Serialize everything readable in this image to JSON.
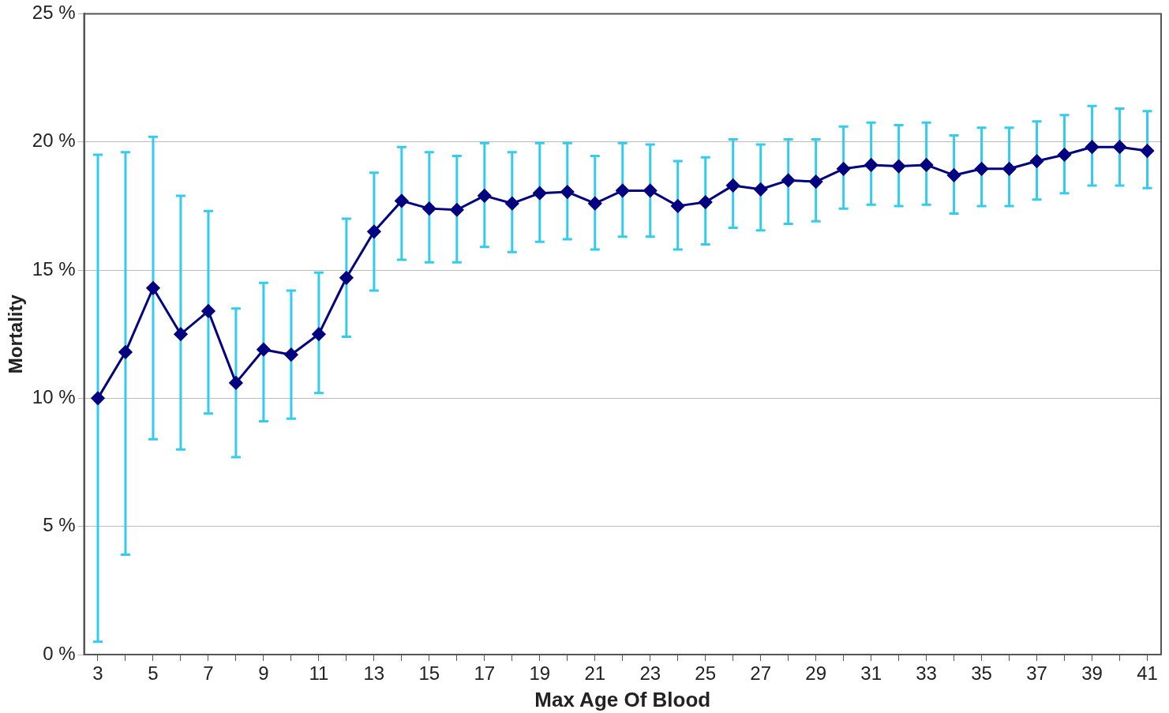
{
  "chart_data": {
    "type": "line",
    "xlabel": "Max Age Of Blood",
    "ylabel": "Mortality",
    "x": [
      3,
      4,
      5,
      6,
      7,
      8,
      9,
      10,
      11,
      12,
      13,
      14,
      15,
      16,
      17,
      18,
      19,
      20,
      21,
      22,
      23,
      24,
      25,
      26,
      27,
      28,
      29,
      30,
      31,
      32,
      33,
      34,
      35,
      36,
      37,
      38,
      39,
      40,
      41
    ],
    "xlim": [
      2.5,
      41.5
    ],
    "xticks": [
      3,
      {
        "value": 4,
        "label": null
      },
      5,
      {
        "value": 6,
        "label": null
      },
      7,
      {
        "value": 8,
        "label": null
      },
      9,
      {
        "value": 10,
        "label": null
      },
      11,
      {
        "value": 12,
        "label": null
      },
      13,
      {
        "value": 14,
        "label": null
      },
      15,
      {
        "value": 16,
        "label": null
      },
      17,
      {
        "value": 18,
        "label": null
      },
      19,
      {
        "value": 20,
        "label": null
      },
      21,
      {
        "value": 22,
        "label": null
      },
      23,
      {
        "value": 24,
        "label": null
      },
      25,
      {
        "value": 26,
        "label": null
      },
      27,
      {
        "value": 28,
        "label": null
      },
      29,
      {
        "value": 30,
        "label": null
      },
      31,
      {
        "value": 32,
        "label": null
      },
      33,
      {
        "value": 34,
        "label": null
      },
      35,
      {
        "value": 36,
        "label": null
      },
      37,
      {
        "value": 38,
        "label": null
      },
      39,
      {
        "value": 40,
        "label": null
      },
      41
    ],
    "series": [
      {
        "color": "#000080",
        "values": [
          10.0,
          11.8,
          14.3,
          12.5,
          13.4,
          10.6,
          11.9,
          11.7,
          12.5,
          14.7,
          16.5,
          17.7,
          17.4,
          17.35,
          17.9,
          17.6,
          18.0,
          18.05,
          17.6,
          18.1,
          18.1,
          17.5,
          17.65,
          18.3,
          18.15,
          18.5,
          18.45,
          18.95,
          19.1,
          19.05,
          19.1,
          18.7,
          18.95,
          18.95,
          19.25,
          19.5,
          19.8,
          19.8,
          19.65
        ],
        "errors": [
          [
            0.5,
            19.5
          ],
          [
            3.9,
            19.6
          ],
          [
            8.4,
            20.2
          ],
          [
            8.0,
            17.9
          ],
          [
            9.4,
            17.3
          ],
          [
            7.7,
            13.5
          ],
          [
            9.1,
            14.5
          ],
          [
            9.2,
            14.2
          ],
          [
            10.2,
            14.9
          ],
          [
            12.4,
            17.0
          ],
          [
            14.2,
            18.8
          ],
          [
            15.4,
            19.8
          ],
          [
            15.3,
            19.6
          ],
          [
            15.3,
            19.45
          ],
          [
            15.9,
            19.95
          ],
          [
            15.7,
            19.6
          ],
          [
            16.1,
            19.95
          ],
          [
            16.2,
            19.95
          ],
          [
            15.8,
            19.45
          ],
          [
            16.3,
            19.95
          ],
          [
            16.3,
            19.9
          ],
          [
            15.8,
            19.25
          ],
          [
            16.0,
            19.4
          ],
          [
            16.65,
            20.1
          ],
          [
            16.55,
            19.9
          ],
          [
            16.8,
            20.1
          ],
          [
            16.9,
            20.1
          ],
          [
            17.4,
            20.6
          ],
          [
            17.55,
            20.75
          ],
          [
            17.5,
            20.65
          ],
          [
            17.55,
            20.75
          ],
          [
            17.2,
            20.25
          ],
          [
            17.5,
            20.55
          ],
          [
            17.5,
            20.55
          ],
          [
            17.75,
            20.8
          ],
          [
            18.0,
            21.05
          ],
          [
            18.3,
            21.4
          ],
          [
            18.3,
            21.3
          ],
          [
            18.2,
            21.2
          ]
        ]
      }
    ],
    "ylim": [
      0,
      25
    ],
    "yticks": [
      {
        "value": 0,
        "label": "0 %"
      },
      {
        "value": 5,
        "label": "5 %"
      },
      {
        "value": 10,
        "label": "10 %"
      },
      {
        "value": 15,
        "label": "15 %"
      },
      {
        "value": 20,
        "label": "20 %"
      },
      {
        "value": 25,
        "label": "25 %"
      }
    ],
    "grid": "y",
    "marker": "diamond",
    "line_style": "solid"
  }
}
